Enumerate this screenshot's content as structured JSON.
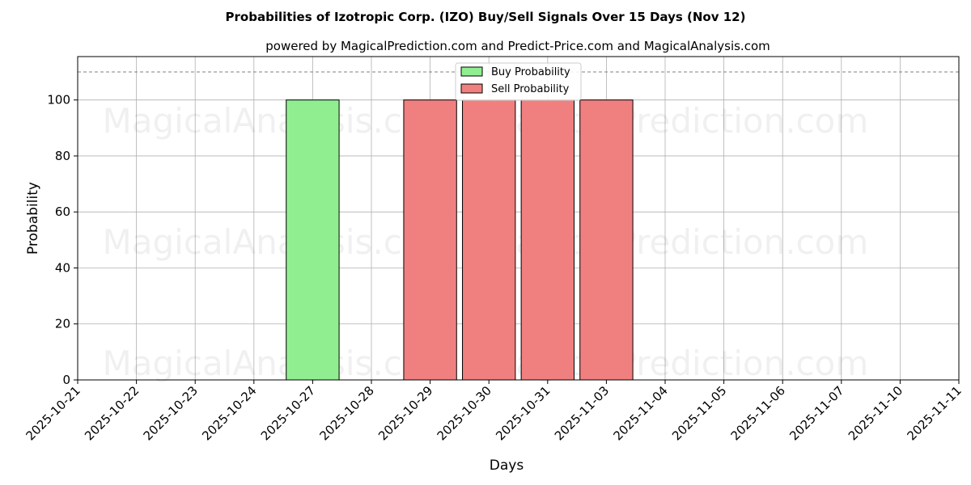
{
  "chart_data": {
    "type": "bar",
    "title": "Probabilities of Izotropic Corp. (IZO) Buy/Sell Signals Over 15 Days (Nov 12)",
    "subtitle": "powered by MagicalPrediction.com and Predict-Price.com and MagicalAnalysis.com",
    "xlabel": "Days",
    "ylabel": "Probability",
    "ylim": [
      0,
      115.5
    ],
    "yticks": [
      0,
      20,
      40,
      60,
      80,
      100
    ],
    "threshold_line": 110,
    "categories": [
      "2025-10-21",
      "2025-10-22",
      "2025-10-23",
      "2025-10-24",
      "2025-10-27",
      "2025-10-28",
      "2025-10-29",
      "2025-10-30",
      "2025-10-31",
      "2025-11-03",
      "2025-11-04",
      "2025-11-05",
      "2025-11-06",
      "2025-11-07",
      "2025-11-10",
      "2025-11-11"
    ],
    "series": [
      {
        "name": "Buy Probability",
        "color": "#90ee90",
        "values": [
          0,
          0,
          0,
          0,
          100,
          0,
          0,
          0,
          0,
          0,
          0,
          0,
          0,
          0,
          0,
          0
        ]
      },
      {
        "name": "Sell Probability",
        "color": "#f08080",
        "values": [
          0,
          0,
          0,
          0,
          0,
          0,
          100,
          100,
          100,
          100,
          0,
          0,
          0,
          0,
          0,
          0
        ]
      }
    ],
    "legend": "top-center",
    "grid": true,
    "watermarks": [
      "MagicalAnalysis.com",
      "MagicalPrediction.com"
    ]
  }
}
